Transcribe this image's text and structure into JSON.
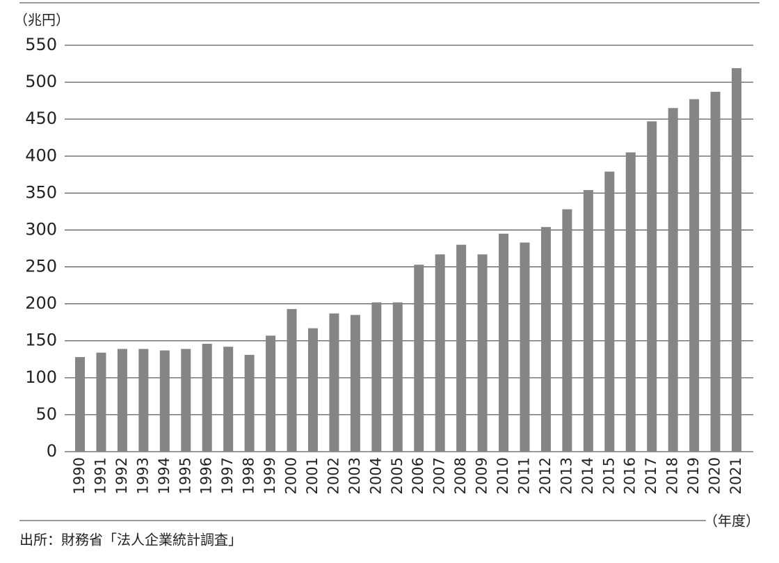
{
  "chart_data": {
    "type": "bar",
    "y_label": "（兆円）",
    "x_label": "（年度）",
    "source": "出所：財務省「法人企業統計調査」",
    "categories": [
      "1990",
      "1991",
      "1992",
      "1993",
      "1994",
      "1995",
      "1996",
      "1997",
      "1998",
      "1999",
      "2000",
      "2001",
      "2002",
      "2003",
      "2004",
      "2005",
      "2006",
      "2007",
      "2008",
      "2009",
      "2010",
      "2011",
      "2012",
      "2013",
      "2014",
      "2015",
      "2016",
      "2017",
      "2018",
      "2019",
      "2020",
      "2021"
    ],
    "values": [
      128,
      134,
      139,
      139,
      137,
      139,
      146,
      142,
      131,
      157,
      193,
      167,
      187,
      185,
      202,
      202,
      253,
      267,
      280,
      267,
      295,
      283,
      304,
      328,
      354,
      379,
      405,
      447,
      465,
      477,
      487,
      519
    ],
    "color": "#858585",
    "ylim": [
      0,
      550
    ],
    "yticks": [
      0,
      50,
      100,
      150,
      200,
      250,
      300,
      350,
      400,
      450,
      500,
      550
    ],
    "grid": true
  }
}
